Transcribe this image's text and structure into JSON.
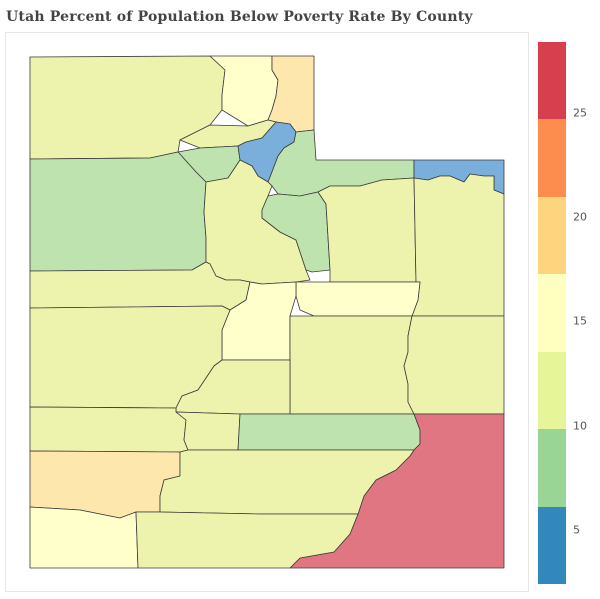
{
  "title": "Utah Percent of Population Below Poverty Rate By County",
  "colors": {
    "class_under_5": "#2f86c0",
    "class_5_7_5": "#8fc88f",
    "class_7_5_10": "#c9e8a9",
    "class_10_12_5": "#e8f2a0",
    "class_12_5_15": "#ededad",
    "class_15_17_5": "#ffffcc",
    "class_17_5_20": "#fedb8e",
    "class_20_22_5": "#fd8d4f",
    "class_22_5_plus": "#d73f4e"
  },
  "legend": {
    "bands": [
      {
        "color": "#d73f4e",
        "range": "22.5+"
      },
      {
        "color": "#fd8d4f",
        "range": "20-22.5"
      },
      {
        "color": "#fed47e",
        "range": "17.5-20"
      },
      {
        "color": "#ffffbf",
        "range": "15-17.5"
      },
      {
        "color": "#e6f598",
        "range": "12.5-15"
      },
      {
        "color": "#99d594",
        "range": "7.5-10"
      },
      {
        "color": "#3288bd",
        "range": "<7.5"
      }
    ],
    "ticks": [
      "25",
      "20",
      "15",
      "10",
      "5"
    ]
  },
  "counties": [
    {
      "region": "northwest",
      "color": "#edf3ad"
    },
    {
      "region": "north-center",
      "color": "#ffffcc"
    },
    {
      "region": "north-east-tip",
      "color": "#fee7ad"
    },
    {
      "region": "weber-area",
      "color": "#edf3ad"
    },
    {
      "region": "davis-area",
      "color": "#bfe3ae"
    },
    {
      "region": "salt-lake-area",
      "color": "#7aaedb"
    },
    {
      "region": "morgan-summit",
      "color": "#bfe3ae"
    },
    {
      "region": "daggett",
      "color": "#7aaedb"
    },
    {
      "region": "tooele",
      "color": "#bfe3ae"
    },
    {
      "region": "utah-wasatch",
      "color": "#edf3ad"
    },
    {
      "region": "wasatch-east",
      "color": "#bfe3ae"
    },
    {
      "region": "duchesne",
      "color": "#edf3ad"
    },
    {
      "region": "uintah",
      "color": "#edf3ad"
    },
    {
      "region": "juab",
      "color": "#edf3ad"
    },
    {
      "region": "carbon",
      "color": "#ffffcc"
    },
    {
      "region": "sanpete",
      "color": "#ffffcc"
    },
    {
      "region": "millard",
      "color": "#edf3ad"
    },
    {
      "region": "emery",
      "color": "#edf3ad"
    },
    {
      "region": "grand",
      "color": "#edf3ad"
    },
    {
      "region": "sevier",
      "color": "#edf3ad"
    },
    {
      "region": "beaver",
      "color": "#edf3ad"
    },
    {
      "region": "piute-wayne",
      "color": "#edf3ad"
    },
    {
      "region": "wayne",
      "color": "#bfe3ae"
    },
    {
      "region": "san-juan",
      "color": "#e07682"
    },
    {
      "region": "iron",
      "color": "#fee7ad"
    },
    {
      "region": "garfield",
      "color": "#edf3ad"
    },
    {
      "region": "washington",
      "color": "#ffffcc"
    },
    {
      "region": "kane",
      "color": "#edf3ad"
    }
  ]
}
